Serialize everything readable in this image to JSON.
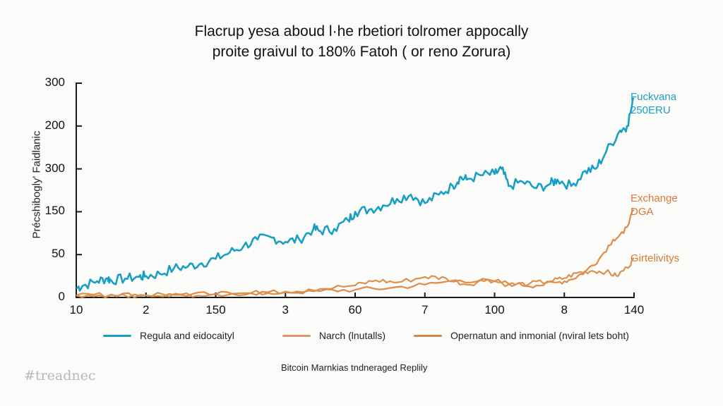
{
  "chart_data": {
    "type": "line",
    "title": "Flacrup yesa aboud lhe rbetiori tolromer appocally proite graivul to 180% Fatoh ( or reno Zorura)",
    "title_lines": [
      "Flacrup yesa aboud l·he rbetiori tolromer appocally",
      "proite graivul to 180% Fatoh ( or reno Zorura)"
    ],
    "xlabel": "",
    "ylabel": "Précshibogly' Faidlanic",
    "x_tick_labels": [
      "10",
      "2",
      "150",
      "3",
      "60",
      "7",
      "100",
      "8",
      "140"
    ],
    "y_tick_labels": [
      "0",
      "50",
      "150",
      "300",
      "200",
      "300"
    ],
    "grid": false,
    "legend_position": "bottom",
    "note": "x values are positions in tick-index units (0 = '10' ... 8 = '140'); y values are positions in tick-index units (0 = '0' ... 5 = top '300')",
    "series": [
      {
        "name": "Regula and eidocaityl",
        "color": "#1a9fc4",
        "end_label": [
          "Fuckvana",
          "250ERU"
        ],
        "x": [
          0,
          0.1,
          0.3,
          0.45,
          0.5,
          0.7,
          0.9,
          1.0,
          1.2,
          1.4,
          1.6,
          1.8,
          2.0,
          2.2,
          2.4,
          2.6,
          2.8,
          3.0,
          3.2,
          3.4,
          3.5,
          3.7,
          3.9,
          4.0,
          4.2,
          4.4,
          4.6,
          4.8,
          5.0,
          5.2,
          5.4,
          5.5,
          5.6,
          5.8,
          6.0,
          6.1,
          6.2,
          6.4,
          6.6,
          6.8,
          6.9,
          7.1,
          7.3,
          7.45,
          7.6,
          7.8,
          7.9,
          8.0
        ],
        "y": [
          0.22,
          0.28,
          0.38,
          0.45,
          0.4,
          0.44,
          0.48,
          0.5,
          0.55,
          0.68,
          0.72,
          0.8,
          0.9,
          1.05,
          1.2,
          1.35,
          1.4,
          1.3,
          1.35,
          1.6,
          1.55,
          1.6,
          1.8,
          2.0,
          2.05,
          2.15,
          2.3,
          2.4,
          2.2,
          2.4,
          2.6,
          2.8,
          2.75,
          2.85,
          2.88,
          3.0,
          2.6,
          2.7,
          2.55,
          2.65,
          2.75,
          2.6,
          2.95,
          3.0,
          3.4,
          3.9,
          4.0,
          4.65
        ]
      },
      {
        "name": "Narch (lnutalls)",
        "color": "#e08a47",
        "end_label": [
          "Exchange",
          "DGA"
        ],
        "x": [
          0,
          0.5,
          1.0,
          1.5,
          2.0,
          2.5,
          3.0,
          3.5,
          4.0,
          4.5,
          5.0,
          5.5,
          6.0,
          6.3,
          6.6,
          6.9,
          7.1,
          7.3,
          7.5,
          7.7,
          7.85,
          8.0
        ],
        "y": [
          0.05,
          0.07,
          0.05,
          0.06,
          0.08,
          0.1,
          0.12,
          0.15,
          0.18,
          0.22,
          0.3,
          0.4,
          0.38,
          0.3,
          0.28,
          0.35,
          0.42,
          0.6,
          0.9,
          1.35,
          1.5,
          2.05
        ]
      },
      {
        "name": "Opernatun and inmonial (nviral lets boht)",
        "color": "#d9924f",
        "end_label": [
          "Girtelivitys"
        ],
        "x": [
          0,
          0.5,
          1.0,
          1.5,
          2.0,
          2.5,
          3.0,
          3.5,
          4.0,
          4.3,
          4.6,
          5.0,
          5.3,
          5.6,
          5.9,
          6.2,
          6.5,
          6.8,
          7.0,
          7.2,
          7.4,
          7.6,
          7.75,
          7.9,
          8.0
        ],
        "y": [
          0.05,
          0.06,
          0.05,
          0.07,
          0.08,
          0.1,
          0.14,
          0.2,
          0.28,
          0.4,
          0.35,
          0.48,
          0.45,
          0.3,
          0.42,
          0.3,
          0.32,
          0.38,
          0.45,
          0.58,
          0.62,
          0.6,
          0.5,
          0.7,
          0.9
        ]
      }
    ]
  },
  "legend": {
    "items": [
      {
        "label": "Regula and eidocaityl",
        "color": "#1a9fc4"
      },
      {
        "label": "Narch (lnutalls)",
        "color": "#e08a47"
      },
      {
        "label": "Opernatun and inmonial (nviral lets boht)",
        "color": "#d9924f"
      }
    ]
  },
  "end_labels": {
    "blue_1": "Fuckvana",
    "blue_2": "250ERU",
    "orange_1": "Exchange",
    "orange_2": "DGA",
    "orange2_1": "Girtelivitys"
  },
  "source": "Bitcoin Marnkias tndneraged Replily",
  "watermark": "#treadnec"
}
